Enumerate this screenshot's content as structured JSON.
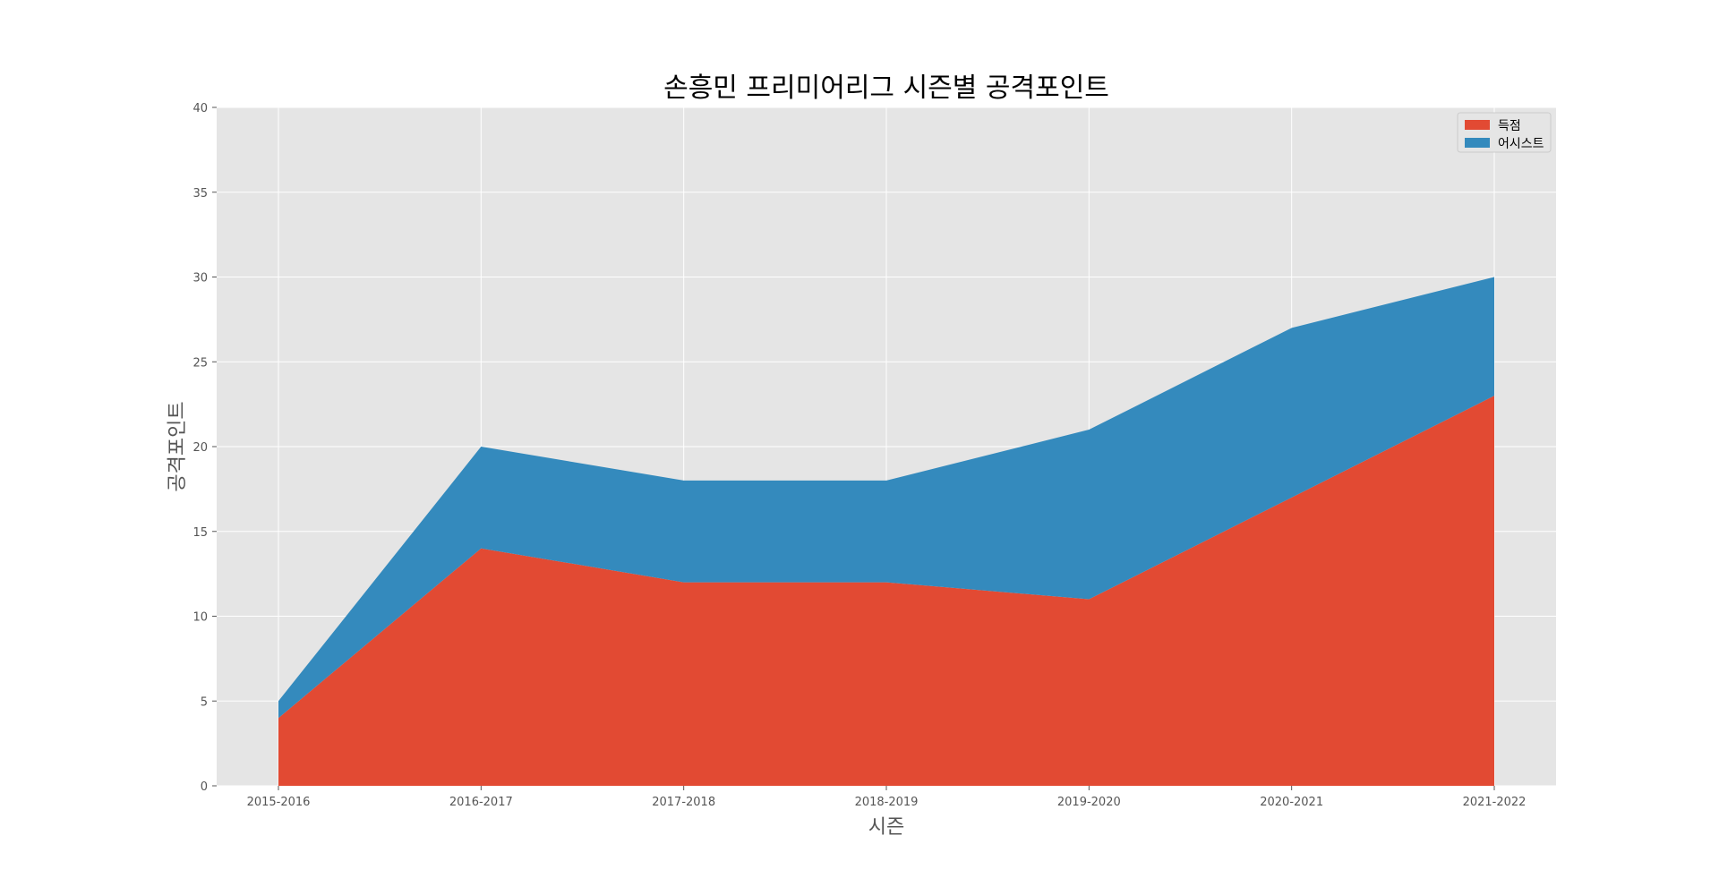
{
  "chart_data": {
    "type": "area",
    "stacked": true,
    "title": "손흥민 프리미어리그 시즌별 공격포인트",
    "xlabel": "시즌",
    "ylabel": "공격포인트",
    "categories": [
      "2015-2016",
      "2016-2017",
      "2017-2018",
      "2018-2019",
      "2019-2020",
      "2020-2021",
      "2021-2022"
    ],
    "series": [
      {
        "name": "득점",
        "values": [
          4,
          14,
          12,
          12,
          11,
          17,
          23
        ],
        "color": "#E24A33"
      },
      {
        "name": "어시스트",
        "values": [
          1,
          6,
          6,
          6,
          10,
          10,
          7
        ],
        "color": "#348ABD"
      }
    ],
    "ylim": [
      0,
      40
    ],
    "yticks": [
      0,
      5,
      10,
      15,
      20,
      25,
      30,
      35,
      40
    ],
    "grid": true,
    "legend_position": "top-right",
    "background_color": "#E5E5E5",
    "grid_color": "#FFFFFF"
  }
}
